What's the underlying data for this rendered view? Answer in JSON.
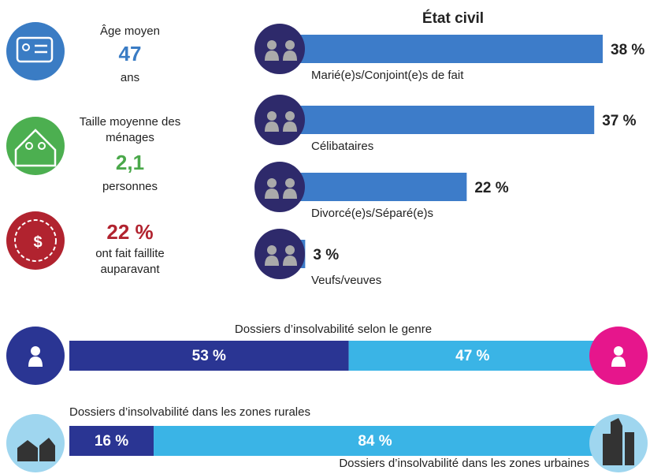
{
  "stats": [
    {
      "label": "Âge moyen",
      "value": "47",
      "unit": "ans"
    },
    {
      "label": "Taille moyenne des ménages",
      "value": "2,1",
      "unit": "personnes"
    },
    {
      "value": "22 %",
      "label": "ont fait faillite auparavant"
    }
  ],
  "chart_data": [
    {
      "type": "bar",
      "title": "État civil",
      "categories": [
        "Marié(e)s/Conjoint(e)s de fait",
        "Célibataires",
        "Divorcé(e)s/Séparé(e)s",
        "Veufs/veuves"
      ],
      "values": [
        38,
        37,
        22,
        3
      ],
      "value_labels": [
        "38 %",
        "37 %",
        "22 %",
        "3 %"
      ],
      "xlim": [
        0,
        38
      ],
      "color": "#3d7cc9"
    },
    {
      "type": "stacked",
      "title": "Dossiers d’insolvabilité selon le genre",
      "values": [
        53,
        47
      ],
      "value_labels": [
        "53 %",
        "47 %"
      ],
      "colors": [
        "#2a3593",
        "#3ab4e6"
      ],
      "xlim": [
        0,
        100
      ]
    },
    {
      "type": "stacked",
      "categories": [
        "Dossiers d’insolvabilité dans les zones rurales",
        "Dossiers d’insolvabilité dans les zones urbaines"
      ],
      "values": [
        16,
        84
      ],
      "value_labels": [
        "16 %",
        "84 %"
      ],
      "colors": [
        "#2a3593",
        "#3ab4e6"
      ],
      "xlim": [
        0,
        100
      ]
    }
  ]
}
